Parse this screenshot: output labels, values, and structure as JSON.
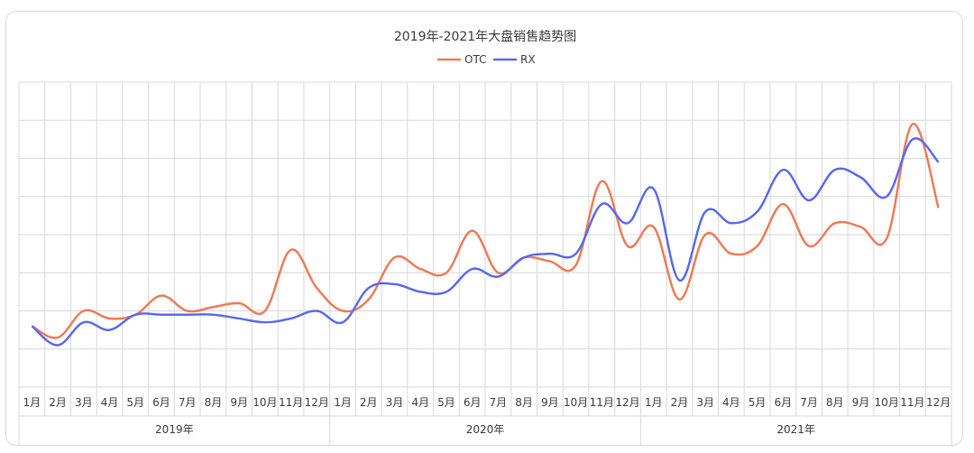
{
  "chart_data": {
    "type": "line",
    "title": "2019年-2021年大盘销售趋势图",
    "xlabel": "",
    "ylabel": "",
    "y_axis_labels_visible": false,
    "grid": true,
    "legend_position": "top",
    "month_labels": [
      "1月",
      "2月",
      "3月",
      "4月",
      "5月",
      "6月",
      "7月",
      "8月",
      "9月",
      "10月",
      "11月",
      "12月"
    ],
    "years": [
      "2019年",
      "2020年",
      "2021年"
    ],
    "ylim": [
      0,
      8
    ],
    "series": [
      {
        "name": "OTC",
        "color": "#F07C57",
        "values": [
          1.6,
          1.3,
          2.0,
          1.8,
          1.9,
          2.4,
          2.0,
          2.1,
          2.2,
          2.0,
          3.6,
          2.6,
          2.0,
          2.3,
          3.4,
          3.1,
          3.0,
          4.1,
          3.0,
          3.4,
          3.3,
          3.2,
          5.4,
          3.7,
          4.2,
          2.3,
          4.0,
          3.5,
          3.7,
          4.8,
          3.7,
          4.3,
          4.2,
          3.9,
          6.9,
          4.7
        ],
        "_note": "values are approximate readings relative to gridlines"
      },
      {
        "name": "RX",
        "color": "#5B6CF0",
        "values": [
          1.6,
          1.1,
          1.7,
          1.5,
          1.9,
          1.9,
          1.9,
          1.9,
          1.8,
          1.7,
          1.8,
          2.0,
          1.7,
          2.6,
          2.7,
          2.5,
          2.5,
          3.1,
          2.9,
          3.4,
          3.5,
          3.5,
          4.8,
          4.3,
          5.2,
          2.8,
          4.6,
          4.3,
          4.6,
          5.7,
          4.9,
          5.7,
          5.5,
          5.0,
          6.5,
          5.9
        ]
      }
    ]
  }
}
